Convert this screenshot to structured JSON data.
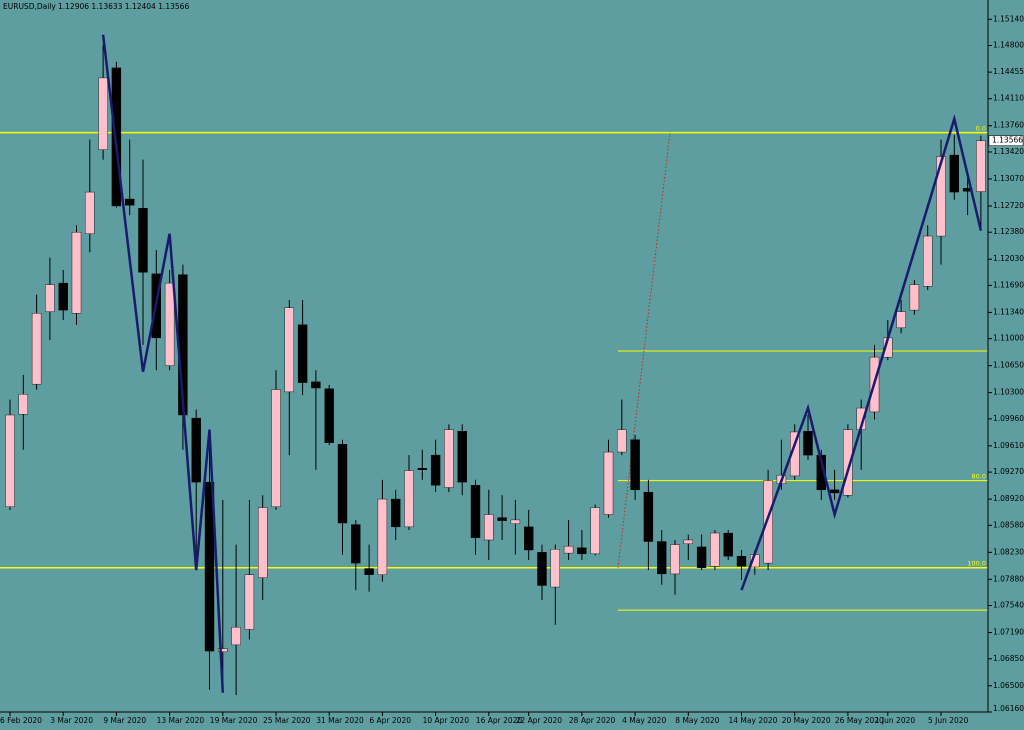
{
  "chart_data": {
    "type": "candlestick",
    "title": "EURUSD,Daily",
    "subtitle": "1.12906 1.13633 1.12404 1.13566",
    "up_color": "#ffc0cb",
    "down_color": "#000000",
    "wick_color": "#000000",
    "background": "#5f9ea0",
    "categories": [
      "6 Feb 2020",
      null,
      null,
      null,
      "3 Mar 2020",
      null,
      null,
      null,
      "9 Mar 2020",
      null,
      null,
      null,
      "13 Mar 2020",
      null,
      null,
      null,
      "19 Mar 2020",
      null,
      null,
      null,
      "25 Mar 2020",
      null,
      null,
      null,
      "31 Mar 2020",
      null,
      null,
      null,
      "6 Apr 2020",
      null,
      null,
      null,
      "10 Apr 2020",
      null,
      null,
      null,
      "16 Apr 2020",
      null,
      null,
      "22 Apr 2020",
      null,
      null,
      null,
      "28 Apr 2020",
      null,
      null,
      null,
      "4 May 2020",
      null,
      null,
      null,
      "8 May 2020",
      null,
      null,
      null,
      "14 May 2020",
      null,
      null,
      null,
      "20 May 2020",
      null,
      null,
      null,
      "26 May 2020",
      null,
      null,
      "1 Jun 2020",
      null,
      null,
      null,
      "5 Jun 2020",
      null,
      null,
      null
    ],
    "open": [
      1.0882,
      1.1002,
      1.1041,
      1.1135,
      1.1172,
      1.1133,
      1.1236,
      1.1345,
      1.1451,
      1.1281,
      1.1269,
      1.1184,
      1.1065,
      1.1183,
      1.0997,
      1.0914,
      1.0694,
      1.0703,
      1.0723,
      1.079,
      1.0882,
      1.1031,
      1.1118,
      1.1044,
      1.1035,
      1.0963,
      1.0859,
      1.0802,
      1.0794,
      1.0892,
      1.0856,
      1.0932,
      1.0949,
      1.0907,
      1.098,
      1.091,
      1.0839,
      1.0868,
      1.086,
      1.0856,
      1.0823,
      1.0778,
      1.0822,
      1.0829,
      1.0821,
      1.0872,
      1.0953,
      1.0969,
      1.0901,
      1.0837,
      1.0795,
      1.0834,
      1.083,
      1.0805,
      1.0848,
      1.0818,
      1.0804,
      1.0809,
      1.0912,
      1.0922,
      1.098,
      1.0949,
      1.0904,
      1.0897,
      1.0982,
      1.1005,
      1.1076,
      1.1114,
      1.1137,
      1.1168,
      1.1233,
      1.1338,
      1.1295,
      1.12906
    ],
    "high": [
      1.1021,
      1.1053,
      1.1157,
      1.1205,
      1.1189,
      1.1247,
      1.1358,
      1.1481,
      1.1459,
      1.1358,
      1.1332,
      1.1215,
      1.1189,
      1.1196,
      1.1008,
      1.0982,
      1.0891,
      1.0833,
      1.0891,
      1.0897,
      1.1059,
      1.115,
      1.115,
      1.1059,
      1.104,
      1.0969,
      1.0865,
      1.0833,
      1.0917,
      1.0904,
      1.0949,
      1.0956,
      1.0969,
      1.0989,
      1.0989,
      1.0917,
      1.0904,
      1.0897,
      1.0891,
      1.0878,
      1.0833,
      1.0833,
      1.0865,
      1.0852,
      1.0885,
      1.0969,
      1.1021,
      1.0975,
      1.0917,
      1.0852,
      1.0839,
      1.0846,
      1.0846,
      1.0852,
      1.0852,
      1.0826,
      1.0826,
      1.093,
      1.0969,
      1.0989,
      1.1001,
      1.0956,
      1.093,
      1.0989,
      1.1021,
      1.1092,
      1.1124,
      1.115,
      1.1176,
      1.1247,
      1.1358,
      1.1364,
      1.1312,
      1.13633
    ],
    "low": [
      1.0878,
      1.0956,
      1.1034,
      1.1098,
      1.1124,
      1.1118,
      1.1212,
      1.1332,
      1.127,
      1.126,
      1.1092,
      1.1059,
      1.1059,
      1.0956,
      1.08,
      1.0645,
      1.0645,
      1.0638,
      1.071,
      1.0761,
      1.0878,
      1.0949,
      1.1027,
      1.093,
      1.0962,
      1.082,
      1.0774,
      1.0772,
      1.0785,
      1.0839,
      1.0852,
      1.0917,
      1.0901,
      1.0901,
      1.0897,
      1.082,
      1.0813,
      1.0839,
      1.082,
      1.0813,
      1.0761,
      1.0729,
      1.0813,
      1.0813,
      1.0819,
      1.0868,
      1.0949,
      1.0891,
      1.08,
      1.0781,
      1.0768,
      1.0813,
      1.08,
      1.08,
      1.0813,
      1.0787,
      1.0794,
      1.08,
      1.0904,
      1.0917,
      1.0943,
      1.0891,
      1.0891,
      1.0894,
      1.093,
      1.0995,
      1.1072,
      1.1107,
      1.1131,
      1.1163,
      1.1196,
      1.128,
      1.126,
      1.12404
    ],
    "close": [
      1.1001,
      1.1028,
      1.1133,
      1.117,
      1.1137,
      1.1238,
      1.129,
      1.1438,
      1.1272,
      1.1273,
      1.1186,
      1.1101,
      1.1172,
      1.1001,
      1.0914,
      1.0695,
      1.0698,
      1.0726,
      1.0794,
      1.0881,
      1.1034,
      1.114,
      1.1043,
      1.1036,
      1.0965,
      1.0861,
      1.0809,
      1.0794,
      1.0892,
      1.0856,
      1.0929,
      1.093,
      1.091,
      1.0982,
      1.0914,
      1.0842,
      1.0872,
      1.0864,
      1.0865,
      1.0826,
      1.078,
      1.0827,
      1.0831,
      1.0821,
      1.0881,
      1.0953,
      1.0982,
      1.0904,
      1.0837,
      1.0795,
      1.0833,
      1.0839,
      1.0803,
      1.0848,
      1.0818,
      1.0805,
      1.082,
      1.0916,
      1.0923,
      1.0979,
      1.0949,
      1.0904,
      1.09,
      1.0982,
      1.101,
      1.1076,
      1.1101,
      1.1135,
      1.117,
      1.1233,
      1.1336,
      1.129,
      1.1291,
      1.13566
    ],
    "ylim": [
      1.0616,
      1.1539
    ],
    "yticks": [
      {
        "value": 1.1514,
        "label": "1.15140"
      },
      {
        "value": 1.148,
        "label": "1.14800"
      },
      {
        "value": 1.14455,
        "label": "1.14455"
      },
      {
        "value": 1.1411,
        "label": "1.14110"
      },
      {
        "value": 1.1376,
        "label": "1.13760"
      },
      {
        "value": 1.1342,
        "label": "1.13420"
      },
      {
        "value": 1.1307,
        "label": "1.13070"
      },
      {
        "value": 1.1272,
        "label": "1.12720"
      },
      {
        "value": 1.1238,
        "label": "1.12380"
      },
      {
        "value": 1.1203,
        "label": "1.12030"
      },
      {
        "value": 1.1169,
        "label": "1.11690"
      },
      {
        "value": 1.1134,
        "label": "1.11340"
      },
      {
        "value": 1.11,
        "label": "1.11000"
      },
      {
        "value": 1.1065,
        "label": "1.10650"
      },
      {
        "value": 1.103,
        "label": "1.10300"
      },
      {
        "value": 1.0996,
        "label": "1.09960"
      },
      {
        "value": 1.0961,
        "label": "1.09610"
      },
      {
        "value": 1.0927,
        "label": "1.09270"
      },
      {
        "value": 1.0892,
        "label": "1.08920"
      },
      {
        "value": 1.0858,
        "label": "1.08580"
      },
      {
        "value": 1.0823,
        "label": "1.08230"
      },
      {
        "value": 1.0788,
        "label": "1.07880"
      },
      {
        "value": 1.0754,
        "label": "1.07540"
      },
      {
        "value": 1.0719,
        "label": "1.07190"
      },
      {
        "value": 1.0685,
        "label": "1.06850"
      },
      {
        "value": 1.065,
        "label": "1.06500"
      },
      {
        "value": 1.0616,
        "label": "1.06160"
      }
    ],
    "levels": [
      {
        "value": 1.1367,
        "label": "0.0",
        "full_width": true
      },
      {
        "value": 1.1084,
        "full_width": false
      },
      {
        "value": 1.0916,
        "label": "80.0",
        "full_width": false
      },
      {
        "value": 1.0803,
        "label": "100.0",
        "full_width": true
      },
      {
        "value": 1.0748,
        "full_width": false
      }
    ],
    "level_color": "#ffff00",
    "trendline": [
      1.0803,
      1.1367
    ],
    "trendline_color": "#cc2222",
    "zigzag": {
      "color": "#1a1a6e",
      "x": [
        7,
        10,
        12,
        14,
        15,
        16,
        null,
        55,
        60,
        62,
        71,
        73
      ],
      "values": [
        1.1494,
        1.1057,
        1.1236,
        1.08,
        1.0982,
        1.0641,
        null,
        1.0774,
        1.101,
        1.0872,
        1.1385,
        1.124
      ]
    }
  }
}
